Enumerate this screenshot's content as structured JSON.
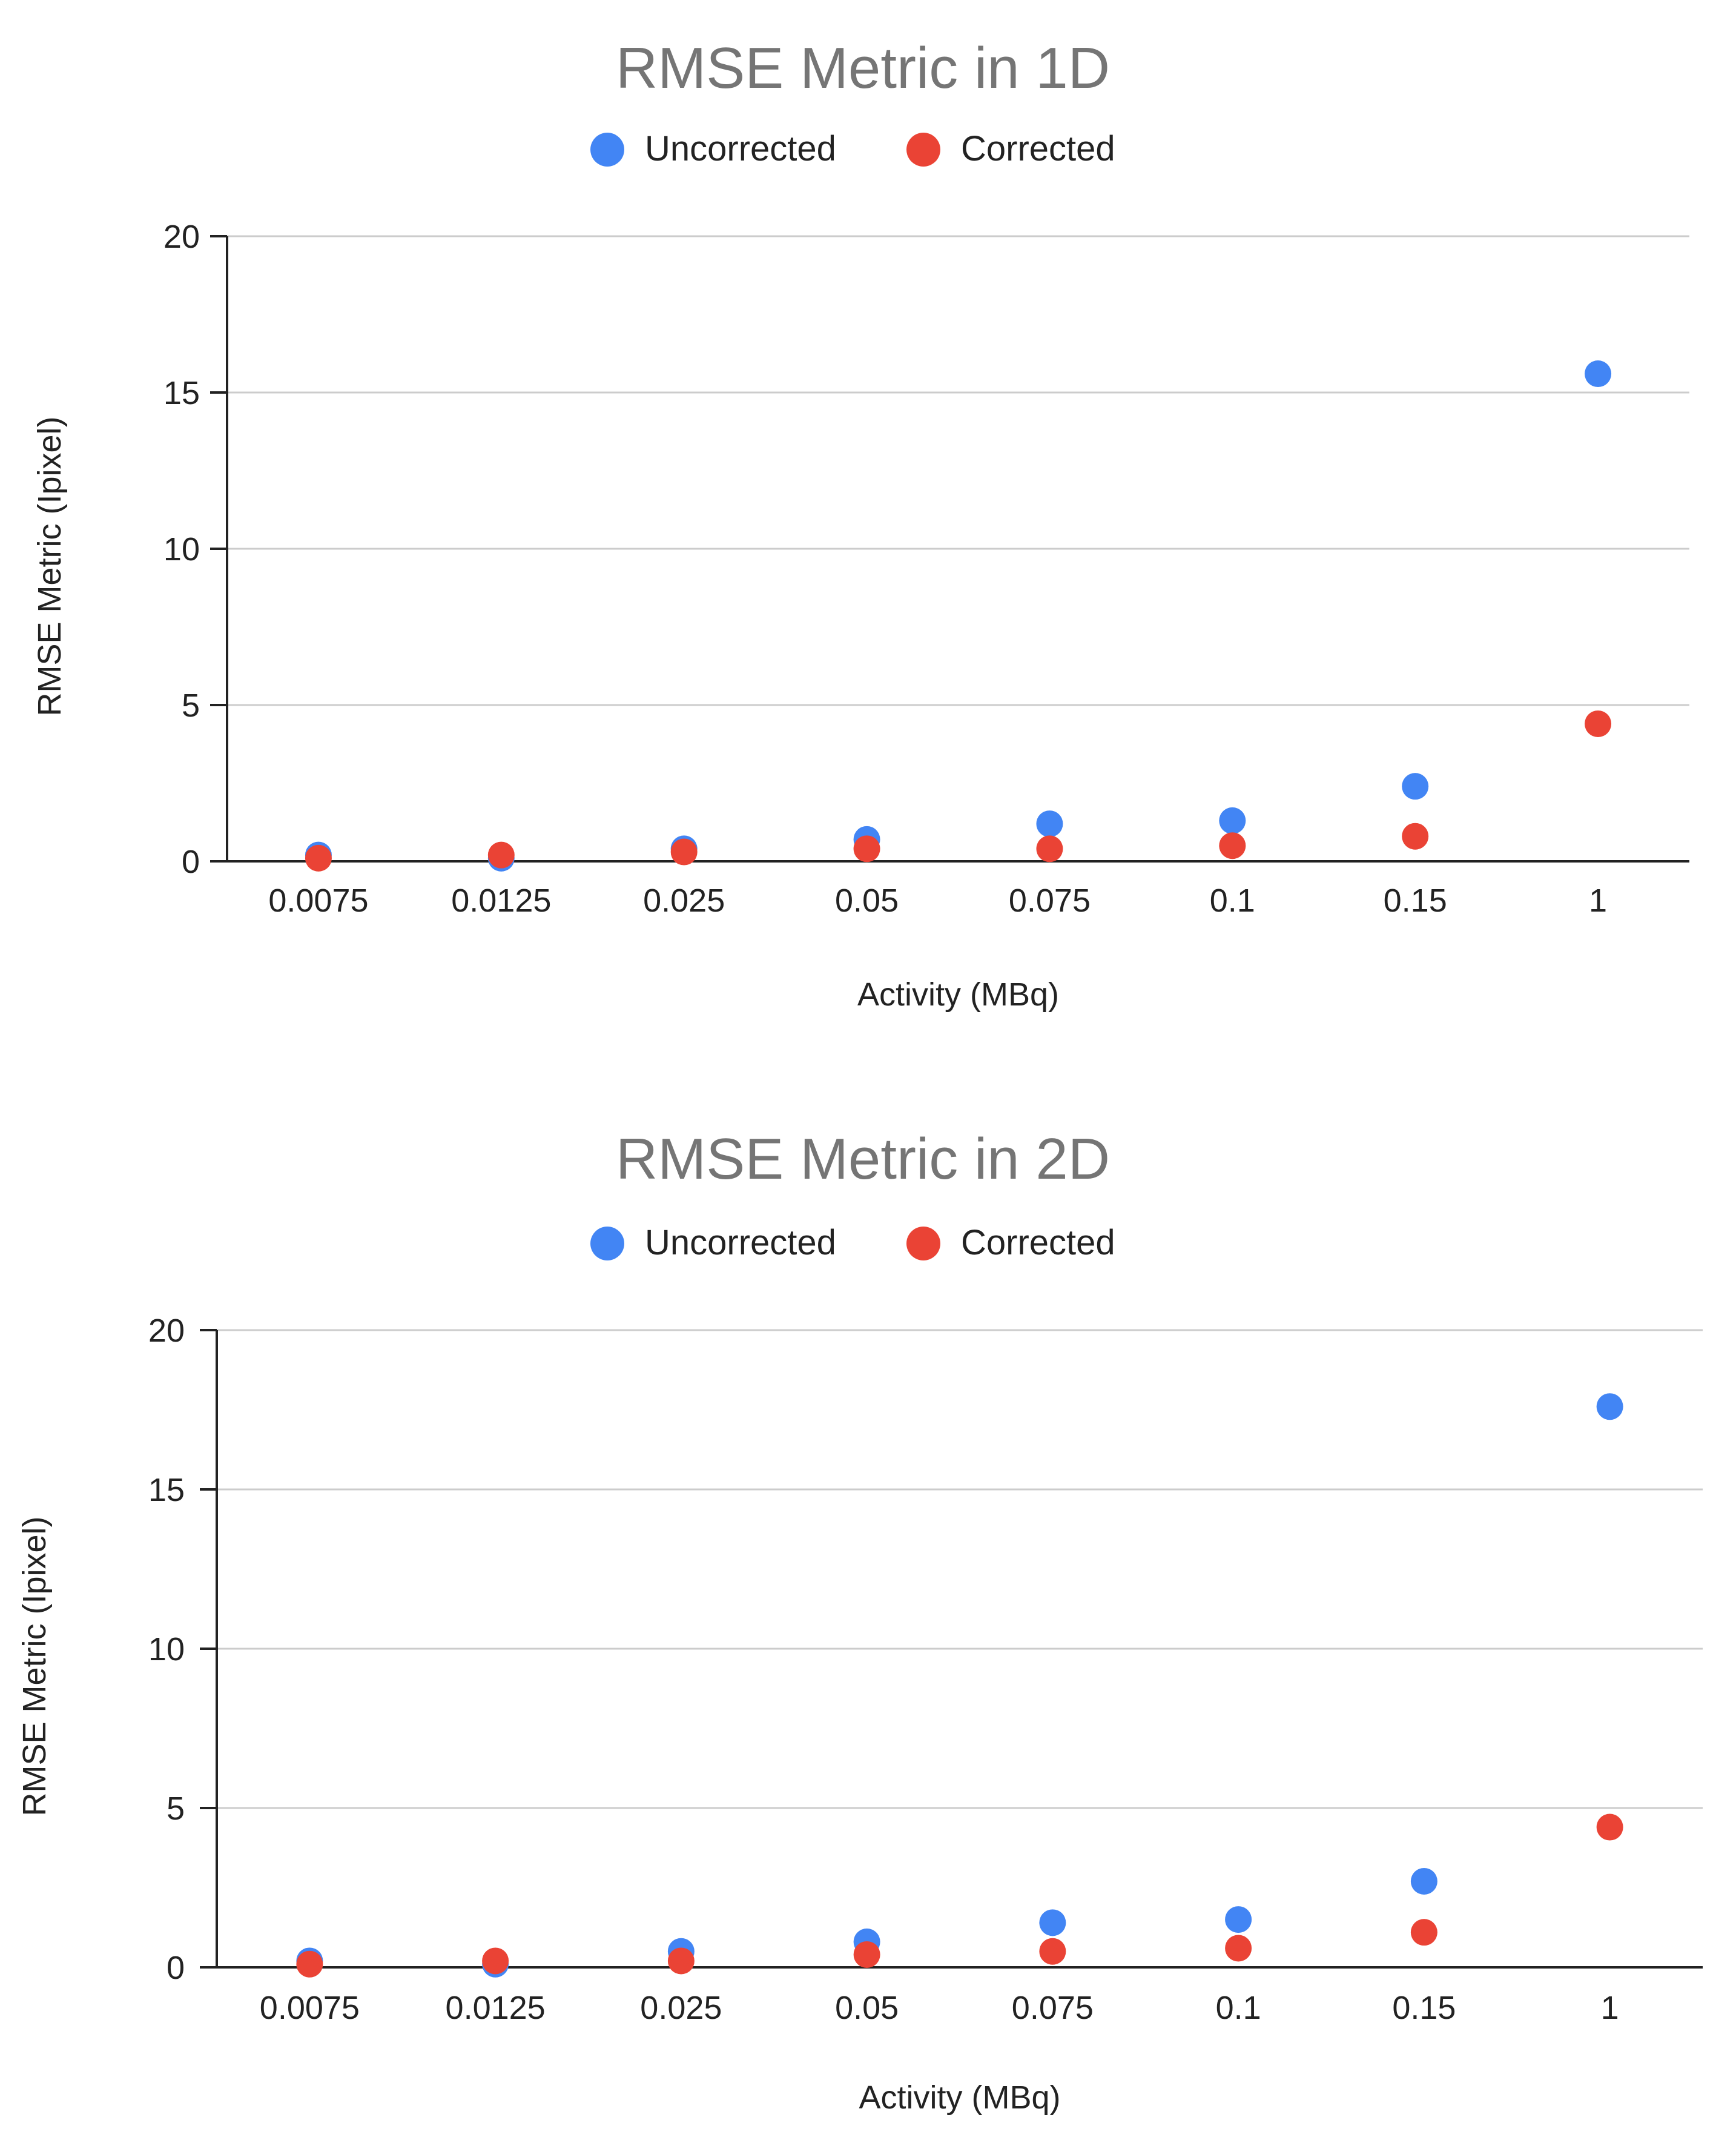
{
  "chart_data": [
    {
      "type": "scatter",
      "title": "RMSE Metric in 1D",
      "xlabel": "Activity (MBq)",
      "ylabel": "RMSE Metric (Ipixel)",
      "categories": [
        "0.0075",
        "0.0125",
        "0.025",
        "0.05",
        "0.075",
        "0.1",
        "0.15",
        "1"
      ],
      "ylim": [
        0,
        20
      ],
      "yticks": [
        "0",
        "5",
        "10",
        "15",
        "20"
      ],
      "grid": true,
      "legend_position": "top",
      "series": [
        {
          "name": "Uncorrected",
          "color": "#4285f4",
          "values": [
            0.2,
            0.1,
            0.4,
            0.7,
            1.2,
            1.3,
            2.4,
            15.6
          ]
        },
        {
          "name": "Corrected",
          "color": "#ea4335",
          "values": [
            0.1,
            0.2,
            0.3,
            0.4,
            0.4,
            0.5,
            0.8,
            4.4
          ]
        }
      ]
    },
    {
      "type": "scatter",
      "title": "RMSE Metric in 2D",
      "xlabel": "Activity (MBq)",
      "ylabel": "RMSE Metric (Ipixel)",
      "categories": [
        "0.0075",
        "0.0125",
        "0.025",
        "0.05",
        "0.075",
        "0.1",
        "0.15",
        "1"
      ],
      "ylim": [
        0,
        20
      ],
      "yticks": [
        "0",
        "5",
        "10",
        "15",
        "20"
      ],
      "grid": true,
      "legend_position": "top",
      "series": [
        {
          "name": "Uncorrected",
          "color": "#4285f4",
          "values": [
            0.2,
            0.1,
            0.5,
            0.8,
            1.4,
            1.5,
            2.7,
            17.6
          ]
        },
        {
          "name": "Corrected",
          "color": "#ea4335",
          "values": [
            0.1,
            0.2,
            0.2,
            0.4,
            0.5,
            0.6,
            1.1,
            4.4
          ]
        }
      ]
    }
  ]
}
